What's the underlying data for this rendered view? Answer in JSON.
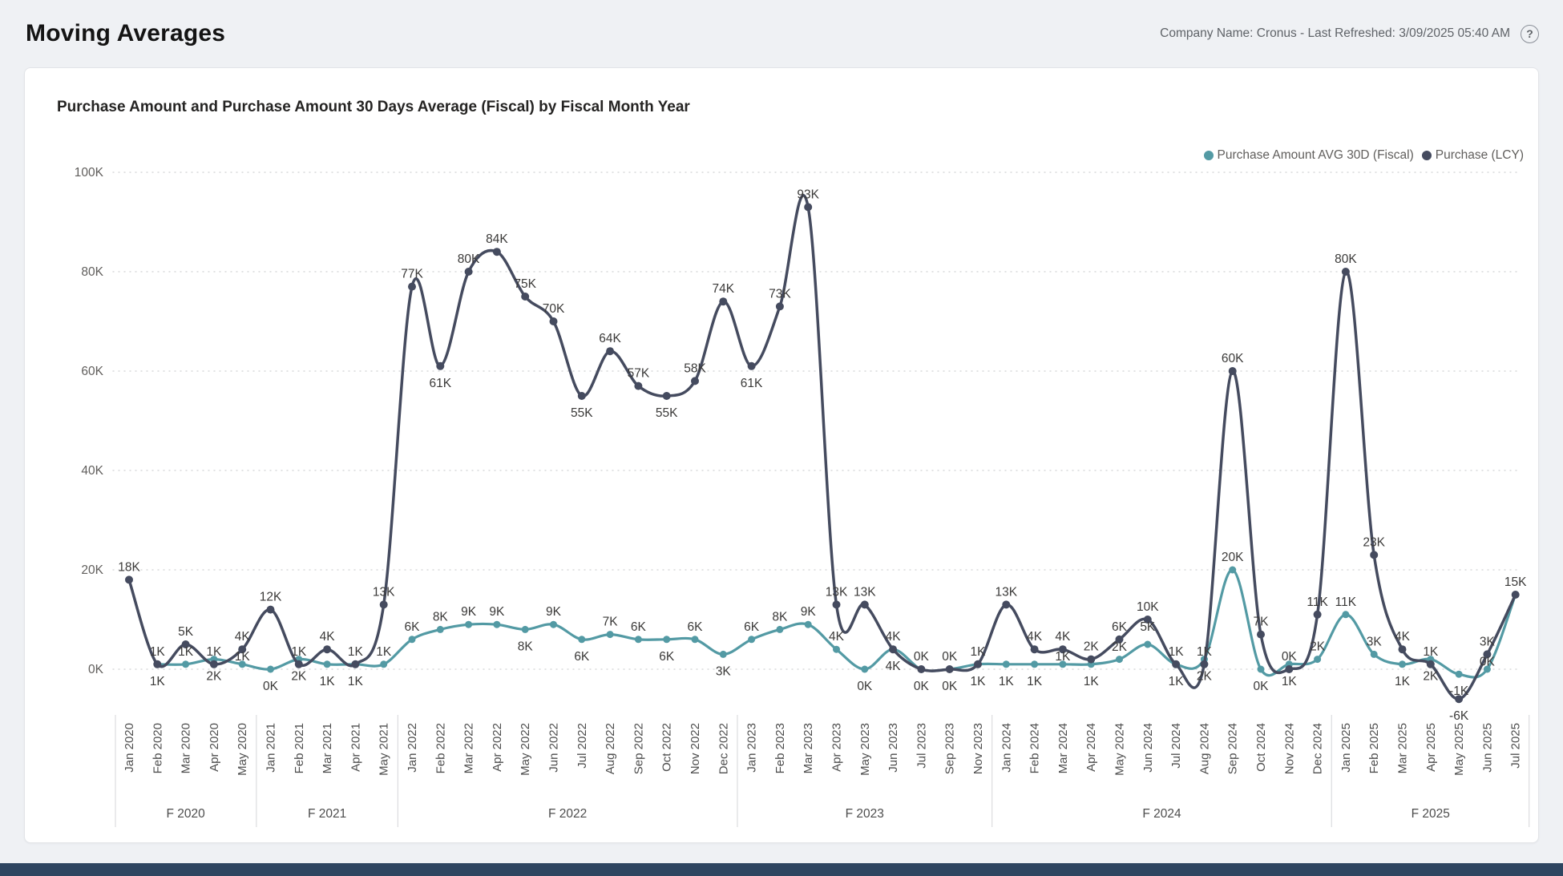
{
  "header": {
    "title": "Moving Averages",
    "meta": "Company Name: Cronus - Last Refreshed: 3/09/2025 05:40 AM",
    "help_glyph": "?"
  },
  "chart": {
    "title": "Purchase Amount and Purchase Amount 30 Days Average (Fiscal) by Fiscal Month Year",
    "legend": [
      {
        "label": "Purchase Amount AVG 30D (Fiscal)",
        "color": "#539aa4"
      },
      {
        "label": "Purchase (LCY)",
        "color": "#454b5f"
      }
    ]
  },
  "chart_data": {
    "type": "line",
    "title": "Purchase Amount and Purchase Amount 30 Days Average (Fiscal) by Fiscal Month Year",
    "unit": "thousands (K)",
    "ylim": [
      -10,
      105
    ],
    "grid": "horizontal-dotted",
    "legend_position": "top-right",
    "y_axis": [
      {
        "label": "100K",
        "v": 100
      },
      {
        "label": "80K",
        "v": 80
      },
      {
        "label": "60K",
        "v": 60
      },
      {
        "label": "40K",
        "v": 40
      },
      {
        "label": "20K",
        "v": 20
      },
      {
        "label": "0K",
        "v": 0
      }
    ],
    "series_meta": [
      {
        "key": "avg",
        "name": "Purchase Amount AVG 30D (Fiscal)",
        "color": "#539aa4"
      },
      {
        "key": "lcy",
        "name": "Purchase (LCY)",
        "color": "#454b5f"
      }
    ],
    "points": [
      {
        "m": "Jan 2020",
        "fy": "F 2020",
        "lcy": 18,
        "ll": "18K",
        "lp": "a",
        "avg": null,
        "al": null,
        "ap": null
      },
      {
        "m": "Feb 2020",
        "fy": "F 2020",
        "lcy": 1,
        "ll": "1K",
        "lp": "a",
        "avg": 1,
        "al": "1K",
        "ap": "b"
      },
      {
        "m": "Mar 2020",
        "fy": "F 2020",
        "lcy": 5,
        "ll": "5K",
        "lp": "a",
        "avg": 1,
        "al": "1K",
        "ap": "s"
      },
      {
        "m": "Apr 2020",
        "fy": "F 2020",
        "lcy": 1,
        "ll": "1K",
        "lp": "a",
        "avg": 2,
        "al": "2K",
        "ap": "b"
      },
      {
        "m": "May 2020",
        "fy": "F 2020",
        "lcy": 4,
        "ll": "4K",
        "lp": "a",
        "avg": 1,
        "al": "1K",
        "ap": "s"
      },
      {
        "m": "Jan 2021",
        "fy": "F 2021",
        "lcy": 12,
        "ll": "12K",
        "lp": "a",
        "avg": 0,
        "al": "0K",
        "ap": "b"
      },
      {
        "m": "Feb 2021",
        "fy": "F 2021",
        "lcy": 1,
        "ll": "1K",
        "lp": "a",
        "avg": 2,
        "al": "2K",
        "ap": "b"
      },
      {
        "m": "Mar 2021",
        "fy": "F 2021",
        "lcy": 4,
        "ll": "4K",
        "lp": "a",
        "avg": 1,
        "al": "1K",
        "ap": "b"
      },
      {
        "m": "Apr 2021",
        "fy": "F 2021",
        "lcy": 1,
        "ll": "1K",
        "lp": "a",
        "avg": 1,
        "al": "1K",
        "ap": "b"
      },
      {
        "m": "May 2021",
        "fy": "F 2021",
        "lcy": 13,
        "ll": "13K",
        "lp": "a",
        "avg": 1,
        "al": "1K",
        "ap": "a"
      },
      {
        "m": "Jan 2022",
        "fy": "F 2022",
        "lcy": 77,
        "ll": "77K",
        "lp": "a",
        "avg": 6,
        "al": "6K",
        "ap": "a"
      },
      {
        "m": "Feb 2022",
        "fy": "F 2022",
        "lcy": 61,
        "ll": "61K",
        "lp": "b",
        "avg": 8,
        "al": "8K",
        "ap": "a"
      },
      {
        "m": "Mar 2022",
        "fy": "F 2022",
        "lcy": 80,
        "ll": "80K",
        "lp": "a",
        "avg": 9,
        "al": "9K",
        "ap": "a"
      },
      {
        "m": "Apr 2022",
        "fy": "F 2022",
        "lcy": 84,
        "ll": "84K",
        "lp": "a",
        "avg": 9,
        "al": "9K",
        "ap": "a"
      },
      {
        "m": "May 2022",
        "fy": "F 2022",
        "lcy": 75,
        "ll": "75K",
        "lp": "a",
        "avg": 8,
        "al": "8K",
        "ap": "b"
      },
      {
        "m": "Jun 2022",
        "fy": "F 2022",
        "lcy": 70,
        "ll": "70K",
        "lp": "a",
        "avg": 9,
        "al": "9K",
        "ap": "a"
      },
      {
        "m": "Jul 2022",
        "fy": "F 2022",
        "lcy": 55,
        "ll": "55K",
        "lp": "b",
        "avg": 6,
        "al": "6K",
        "ap": "b"
      },
      {
        "m": "Aug 2022",
        "fy": "F 2022",
        "lcy": 64,
        "ll": "64K",
        "lp": "a",
        "avg": 7,
        "al": "7K",
        "ap": "a"
      },
      {
        "m": "Sep 2022",
        "fy": "F 2022",
        "lcy": 57,
        "ll": "57K",
        "lp": "a",
        "avg": 6,
        "al": "6K",
        "ap": "a"
      },
      {
        "m": "Oct 2022",
        "fy": "F 2022",
        "lcy": 55,
        "ll": "55K",
        "lp": "b",
        "avg": 6,
        "al": "6K",
        "ap": "b"
      },
      {
        "m": "Nov 2022",
        "fy": "F 2022",
        "lcy": 58,
        "ll": "58K",
        "lp": "a",
        "avg": 6,
        "al": "6K",
        "ap": "a"
      },
      {
        "m": "Dec 2022",
        "fy": "F 2022",
        "lcy": 74,
        "ll": "74K",
        "lp": "a",
        "avg": 3,
        "al": "3K",
        "ap": "b"
      },
      {
        "m": "Jan 2023",
        "fy": "F 2023",
        "lcy": 61,
        "ll": "61K",
        "lp": "b",
        "avg": 6,
        "al": "6K",
        "ap": "a"
      },
      {
        "m": "Feb 2023",
        "fy": "F 2023",
        "lcy": 73,
        "ll": "73K",
        "lp": "a",
        "avg": 8,
        "al": "8K",
        "ap": "a"
      },
      {
        "m": "Mar 2023",
        "fy": "F 2023",
        "lcy": 93,
        "ll": "93K",
        "lp": "a",
        "avg": 9,
        "al": "9K",
        "ap": "a"
      },
      {
        "m": "Apr 2023",
        "fy": "F 2023",
        "lcy": 13,
        "ll": "13K",
        "lp": "a",
        "avg": 4,
        "al": "4K",
        "ap": "a"
      },
      {
        "m": "May 2023",
        "fy": "F 2023",
        "lcy": 13,
        "ll": "13K",
        "lp": "a",
        "avg": 0,
        "al": "0K",
        "ap": "b"
      },
      {
        "m": "Jun 2023",
        "fy": "F 2023",
        "lcy": 4,
        "ll": "4K",
        "lp": "a",
        "avg": 4,
        "al": "4K",
        "ap": "b"
      },
      {
        "m": "Jul 2023",
        "fy": "F 2023",
        "lcy": 0,
        "ll": "0K",
        "lp": "a",
        "avg": 0,
        "al": "0K",
        "ap": "b"
      },
      {
        "m": "Sep 2023",
        "fy": "F 2023",
        "lcy": 0,
        "ll": "0K",
        "lp": "a",
        "avg": 0,
        "al": "0K",
        "ap": "b"
      },
      {
        "m": "Nov 2023",
        "fy": "F 2023",
        "lcy": 1,
        "ll": "1K",
        "lp": "a",
        "avg": 1,
        "al": "1K",
        "ap": "b"
      },
      {
        "m": "Jan 2024",
        "fy": "F 2024",
        "lcy": 13,
        "ll": "13K",
        "lp": "a",
        "avg": 1,
        "al": "1K",
        "ap": "b"
      },
      {
        "m": "Feb 2024",
        "fy": "F 2024",
        "lcy": 4,
        "ll": "4K",
        "lp": "a",
        "avg": 1,
        "al": "1K",
        "ap": "b"
      },
      {
        "m": "Mar 2024",
        "fy": "F 2024",
        "lcy": 4,
        "ll": "4K",
        "lp": "a",
        "avg": 1,
        "al": "1K",
        "ap": "s"
      },
      {
        "m": "Apr 2024",
        "fy": "F 2024",
        "lcy": 2,
        "ll": "2K",
        "lp": "a",
        "avg": 1,
        "al": "1K",
        "ap": "b"
      },
      {
        "m": "May 2024",
        "fy": "F 2024",
        "lcy": 6,
        "ll": "6K",
        "lp": "a",
        "avg": 2,
        "al": "2K",
        "ap": "s"
      },
      {
        "m": "Jun 2024",
        "fy": "F 2024",
        "lcy": 10,
        "ll": "10K",
        "lp": "a",
        "avg": 5,
        "al": "5K",
        "ap": "s"
      },
      {
        "m": "Jul 2024",
        "fy": "F 2024",
        "lcy": 1,
        "ll": "1K",
        "lp": "a",
        "avg": 1,
        "al": "1K",
        "ap": "b"
      },
      {
        "m": "Aug 2024",
        "fy": "F 2024",
        "lcy": 1,
        "ll": "1K",
        "lp": "a",
        "avg": 2,
        "al": "2K",
        "ap": "b"
      },
      {
        "m": "Sep 2024",
        "fy": "F 2024",
        "lcy": 60,
        "ll": "60K",
        "lp": "a",
        "avg": 20,
        "al": "20K",
        "ap": "a"
      },
      {
        "m": "Oct 2024",
        "fy": "F 2024",
        "lcy": 7,
        "ll": "7K",
        "lp": "a",
        "avg": 0,
        "al": "0K",
        "ap": "b"
      },
      {
        "m": "Nov 2024",
        "fy": "F 2024",
        "lcy": 0,
        "ll": "0K",
        "lp": "a",
        "avg": 1,
        "al": "1K",
        "ap": "b"
      },
      {
        "m": "Dec 2024",
        "fy": "F 2024",
        "lcy": 11,
        "ll": "11K",
        "lp": "a",
        "avg": 2,
        "al": "2K",
        "ap": "a"
      },
      {
        "m": "Jan 2025",
        "fy": "F 2025",
        "lcy": 80,
        "ll": "80K",
        "lp": "a",
        "avg": 11,
        "al": "11K",
        "ap": "a"
      },
      {
        "m": "Feb 2025",
        "fy": "F 2025",
        "lcy": 23,
        "ll": "23K",
        "lp": "a",
        "avg": 3,
        "al": "3K",
        "ap": "a"
      },
      {
        "m": "Mar 2025",
        "fy": "F 2025",
        "lcy": 4,
        "ll": "4K",
        "lp": "a",
        "avg": 1,
        "al": "1K",
        "ap": "b"
      },
      {
        "m": "Apr 2025",
        "fy": "F 2025",
        "lcy": 1,
        "ll": "1K",
        "lp": "a",
        "avg": 2,
        "al": "2K",
        "ap": "b"
      },
      {
        "m": "May 2025",
        "fy": "F 2025",
        "lcy": -6,
        "ll": "-6K",
        "lp": "b",
        "avg": -1,
        "al": "-1K",
        "ap": "b"
      },
      {
        "m": "Jun 2025",
        "fy": "F 2025",
        "lcy": 3,
        "ll": "3K",
        "lp": "a",
        "avg": 0,
        "al": "0K",
        "ap": "s"
      },
      {
        "m": "Jul 2025",
        "fy": "F 2025",
        "lcy": 15,
        "ll": "15K",
        "lp": "a",
        "avg": 15,
        "al": null,
        "ap": null
      }
    ]
  }
}
